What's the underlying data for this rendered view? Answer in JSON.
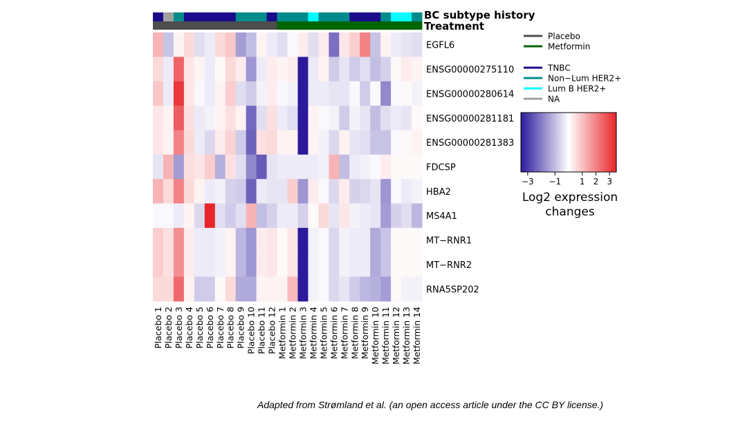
{
  "chart_data": {
    "type": "heatmap",
    "rows": [
      "EGFL6",
      "ENSG00000275110",
      "ENSG00000280614",
      "ENSG00000281181",
      "ENSG00000281383",
      "FDCSP",
      "HBA2",
      "MS4A1",
      "MT−RNR1",
      "MT−RNR2",
      "RNA5SP202"
    ],
    "columns": [
      "Placebo 1",
      "Placebo 2",
      "Placebo 3",
      "Placebo 4",
      "Placebo 5",
      "Placebo 6",
      "Placebo 7",
      "Placebo 8",
      "Placebo 9",
      "Placebo 10",
      "Placebo 11",
      "Placebo 12",
      "Metformin 1",
      "Metformin 2",
      "Metformin 3",
      "Metformin 4",
      "Metformin 5",
      "Metformin 6",
      "Metformin 7",
      "Metformin 8",
      "Metformin 9",
      "Metformin 10",
      "Metformin 11",
      "Metformin 12",
      "Metformin 13",
      "Metformin 14"
    ],
    "values": [
      [
        1.2,
        -0.9,
        0.2,
        0.6,
        -0.5,
        -0.3,
        0.6,
        0.9,
        -1.5,
        -1.0,
        0.2,
        -0.3,
        -0.5,
        -0.1,
        0.3,
        -0.5,
        0.3,
        -2.2,
        0.4,
        0.8,
        2.0,
        -0.9,
        0.2,
        -0.3,
        -0.4,
        -0.5
      ],
      [
        0.6,
        -0.3,
        2.5,
        0.4,
        0.2,
        -0.3,
        0.1,
        0.6,
        0.3,
        -1.6,
        -0.3,
        0.3,
        0.2,
        0.3,
        -3.5,
        -0.3,
        0.2,
        -0.8,
        -0.4,
        -0.8,
        -0.5,
        -1.0,
        -0.7,
        0.1,
        0.3,
        0.2
      ],
      [
        0.9,
        -0.3,
        3.2,
        0.4,
        -0.1,
        -0.3,
        0.2,
        0.8,
        -0.5,
        -0.8,
        -0.2,
        0.3,
        -0.1,
        -0.2,
        -3.5,
        -0.3,
        -0.3,
        -0.4,
        -0.4,
        -0.1,
        -0.8,
        -0.1,
        -1.8,
        -0.1,
        0.1,
        -0.2
      ],
      [
        0.4,
        0.2,
        2.6,
        0.5,
        -0.3,
        -0.2,
        0.2,
        0.5,
        0.2,
        -2.3,
        -0.5,
        0.5,
        -0.3,
        -0.5,
        -3.5,
        0.2,
        -0.1,
        -0.2,
        -0.8,
        -0.2,
        -0.4,
        -1.0,
        -0.5,
        -0.3,
        -0.4,
        0.1
      ],
      [
        0.4,
        0.2,
        2.0,
        0.6,
        -0.3,
        -0.6,
        0.3,
        0.7,
        -0.8,
        -2.4,
        0.5,
        0.6,
        0.2,
        0.2,
        -3.5,
        0.2,
        -0.2,
        -0.6,
        0.2,
        -0.4,
        -0.5,
        -0.9,
        -0.9,
        -0.1,
        0.1,
        0.2
      ],
      [
        -0.4,
        1.2,
        -1.5,
        0.5,
        0.4,
        0.8,
        -1.2,
        0.5,
        -0.5,
        -1.8,
        -2.5,
        -0.4,
        -0.3,
        -0.3,
        -0.3,
        -0.3,
        -0.2,
        1.2,
        -1.0,
        -0.3,
        -0.2,
        -0.1,
        0.3,
        0.1,
        0.1,
        0.1
      ],
      [
        1.2,
        0.6,
        2.0,
        0.6,
        0.2,
        -0.3,
        -0.2,
        -0.7,
        -0.8,
        -2.4,
        -0.3,
        -0.4,
        -0.4,
        0.8,
        -1.6,
        0.3,
        -0.1,
        -0.6,
        0.3,
        -0.7,
        -0.6,
        -0.4,
        -1.6,
        -0.1,
        -0.3,
        -0.2
      ],
      [
        -0.1,
        -0.1,
        -0.3,
        0.2,
        -0.6,
        3.5,
        -0.5,
        -0.8,
        -0.5,
        1.2,
        -1.0,
        -0.7,
        -0.3,
        -0.3,
        -0.7,
        0.1,
        0.6,
        -0.4,
        0.4,
        -0.2,
        -0.3,
        -0.4,
        -1.5,
        -0.7,
        -0.5,
        -1.1
      ],
      [
        0.8,
        0.5,
        1.8,
        0.3,
        -0.3,
        -0.3,
        -0.2,
        0.2,
        -1.1,
        -1.6,
        0.3,
        0.4,
        0.1,
        0.4,
        -3.5,
        -0.2,
        -0.1,
        -0.6,
        -0.2,
        -0.3,
        -0.3,
        -1.3,
        -0.9,
        0.1,
        0.1,
        0.1
      ],
      [
        0.8,
        0.5,
        1.8,
        0.3,
        -0.3,
        -0.3,
        -0.2,
        0.2,
        -1.1,
        -1.6,
        0.3,
        0.4,
        0.1,
        0.4,
        -3.5,
        -0.2,
        -0.1,
        -0.6,
        -0.2,
        -0.3,
        -0.3,
        -1.3,
        -0.9,
        0.1,
        0.1,
        0.1
      ],
      [
        0.6,
        0.6,
        2.4,
        0.2,
        -0.8,
        -0.8,
        0.1,
        0.6,
        -1.3,
        -1.3,
        0.2,
        0.2,
        0.2,
        1.1,
        -3.5,
        -0.2,
        -0.1,
        -0.6,
        -0.4,
        -0.8,
        -1.1,
        -1.2,
        -1.5,
        0.1,
        -0.2,
        -0.2
      ]
    ],
    "annotation_tracks": [
      {
        "name": "BC subtype history",
        "values": [
          "TNBC",
          "NA",
          "Non−Lum HER2+",
          "TNBC",
          "TNBC",
          "TNBC",
          "TNBC",
          "TNBC",
          "Non−Lum HER2+",
          "Non−Lum HER2+",
          "Non−Lum HER2+",
          "TNBC",
          "Non−Lum HER2+",
          "Non−Lum HER2+",
          "Non−Lum HER2+",
          "Lum B HER2+",
          "Non−Lum HER2+",
          "Non−Lum HER2+",
          "Non−Lum HER2+",
          "TNBC",
          "TNBC",
          "TNBC",
          "Non−Lum HER2+",
          "Lum B HER2+",
          "Lum B HER2+",
          "Non−Lum HER2+"
        ]
      },
      {
        "name": "Treatment",
        "values": [
          "Placebo",
          "Placebo",
          "Placebo",
          "Placebo",
          "Placebo",
          "Placebo",
          "Placebo",
          "Placebo",
          "Placebo",
          "Placebo",
          "Placebo",
          "Placebo",
          "Metformin",
          "Metformin",
          "Metformin",
          "Metformin",
          "Metformin",
          "Metformin",
          "Metformin",
          "Metformin",
          "Metformin",
          "Metformin",
          "Metformin",
          "Metformin",
          "Metformin",
          "Metformin"
        ]
      }
    ],
    "legend_treatment": [
      {
        "label": "Placebo",
        "color": "#4d4d4d"
      },
      {
        "label": "Metformin",
        "color": "#006400"
      }
    ],
    "legend_subtype": [
      {
        "label": "TNBC",
        "color": "#1b0b8a"
      },
      {
        "label": "Non−Lum HER2+",
        "color": "#008b8b"
      },
      {
        "label": "Lum B HER2+",
        "color": "#00ffff"
      },
      {
        "label": "NA",
        "color": "#a0a0a0"
      }
    ],
    "colorbar": {
      "title": "Log2 expression changes",
      "ticks": [
        "−3",
        "−1",
        "1",
        "2",
        "3"
      ],
      "tick_values": [
        -3,
        -1,
        1,
        2,
        3
      ],
      "range": [
        -3.5,
        3.5
      ],
      "low_color": "#2b1a9c",
      "mid_color": "#ffffff",
      "high_color": "#e8252a"
    }
  },
  "caption": "Adapted from Strømland et al. (an open access article under the CC BY license.)"
}
